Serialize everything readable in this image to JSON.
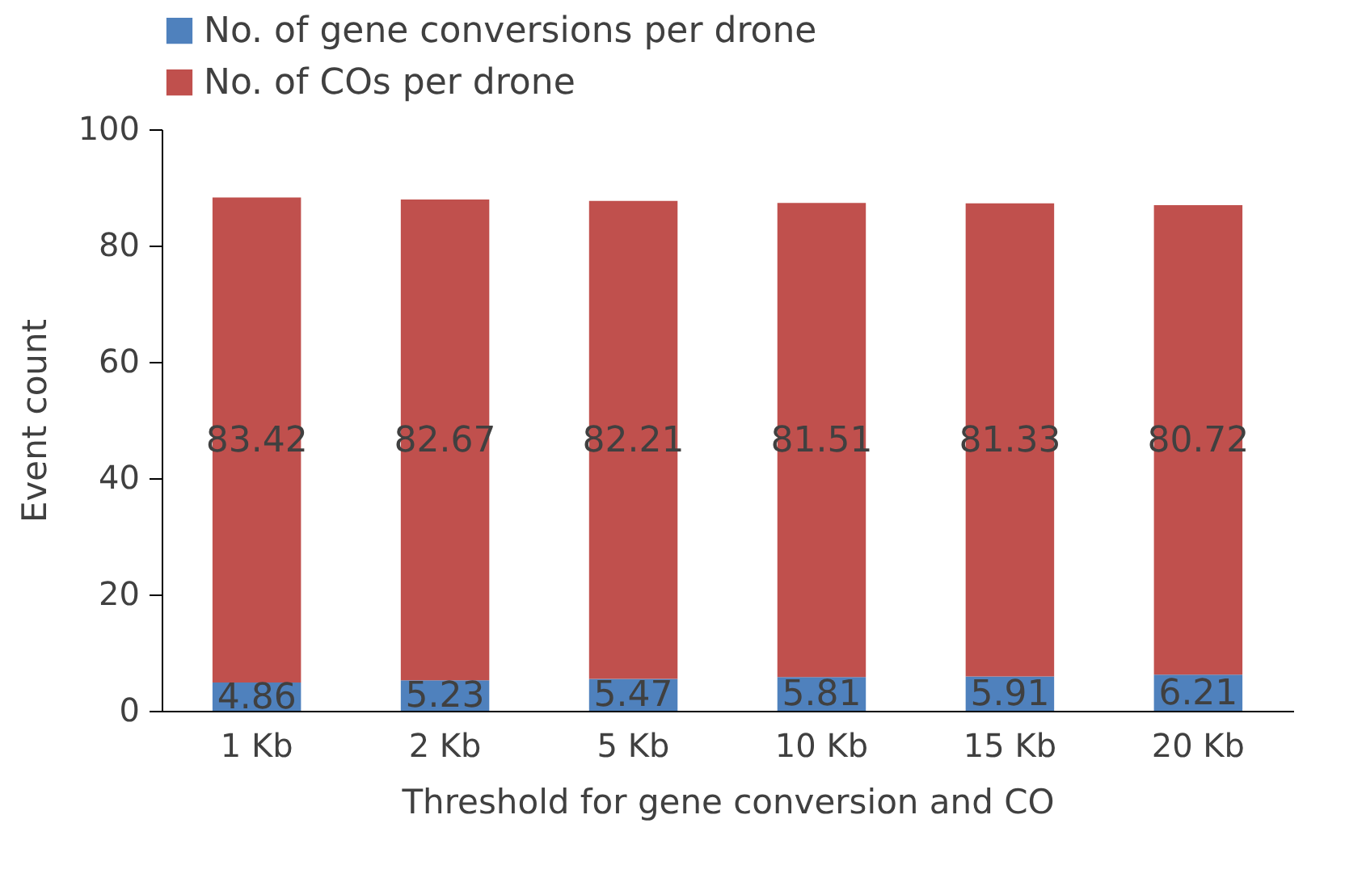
{
  "chart_data": {
    "type": "bar",
    "stacked": true,
    "xlabel": "Threshold for gene conversion and CO",
    "ylabel": "Event count",
    "categories": [
      "1 Kb",
      "2 Kb",
      "5 Kb",
      "10 Kb",
      "15 Kb",
      "20 Kb"
    ],
    "series": [
      {
        "name": "No. of gene conversions per drone",
        "color": "#4f81bd",
        "values": [
          4.86,
          5.23,
          5.47,
          5.81,
          5.91,
          6.21
        ]
      },
      {
        "name": "No. of COs per drone",
        "color": "#c0504d",
        "values": [
          83.42,
          82.67,
          82.21,
          81.51,
          81.33,
          80.72
        ]
      }
    ],
    "ylim": [
      0,
      100
    ],
    "yticks": [
      0,
      20,
      40,
      60,
      80,
      100
    ],
    "grid": false,
    "legend": "top",
    "data_labels": true
  }
}
